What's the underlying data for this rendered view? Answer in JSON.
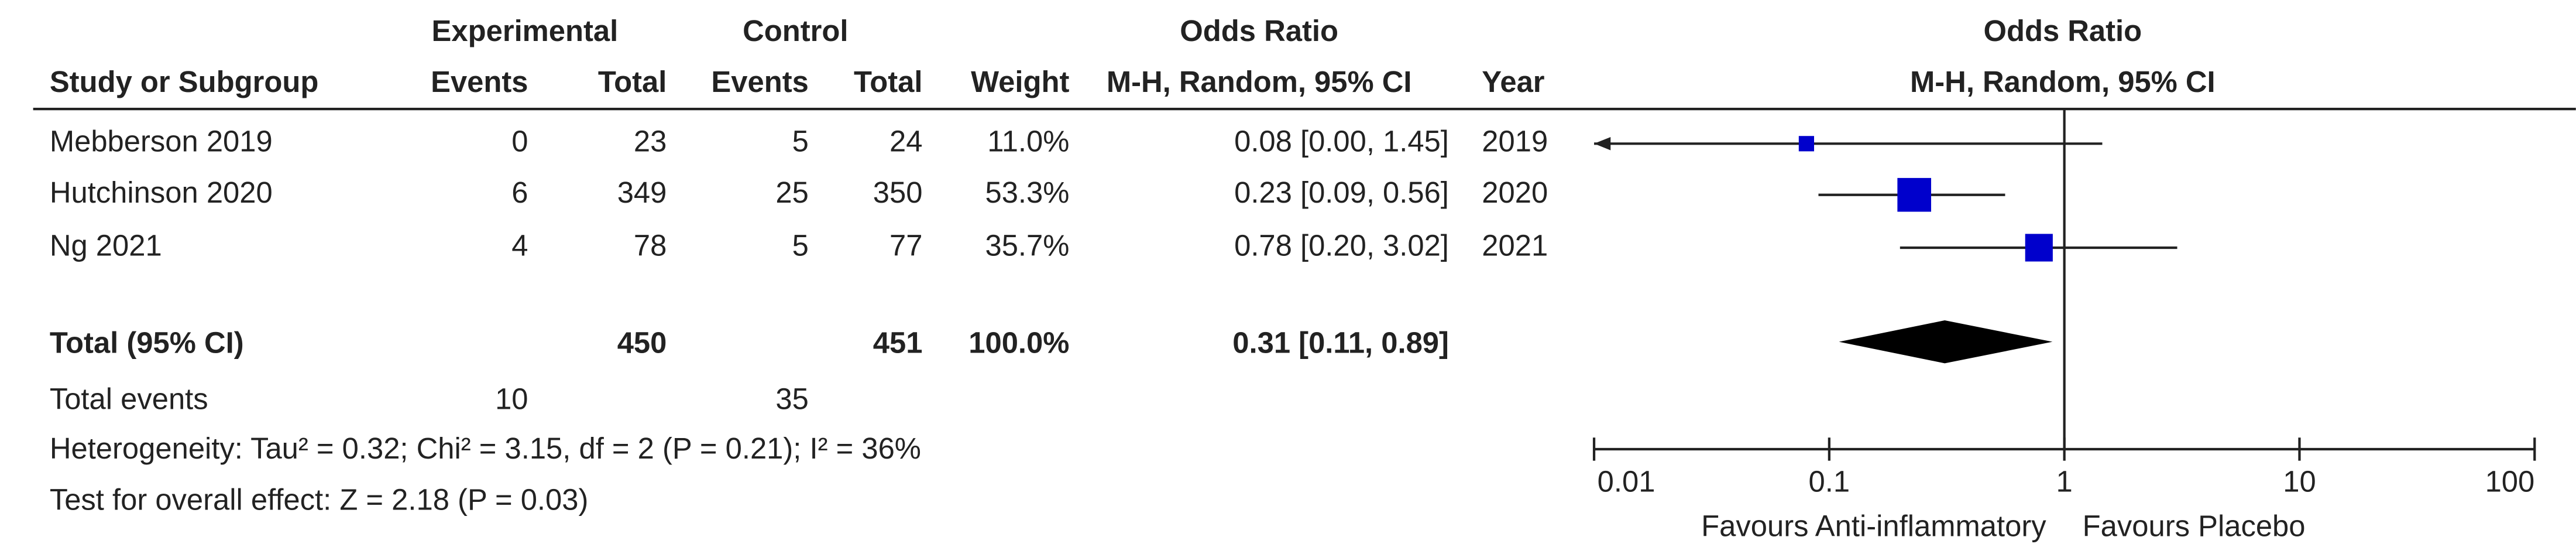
{
  "chart_data": {
    "type": "forest",
    "group_headers": {
      "experimental": "Experimental",
      "control": "Control",
      "estimate": "Odds Ratio",
      "plot": "Odds Ratio"
    },
    "columns": [
      "Study or Subgroup",
      "Events",
      "Total",
      "Events",
      "Total",
      "Weight",
      "M-H, Random, 95% CI",
      "Year"
    ],
    "plot_subtitle": "M-H, Random, 95% CI",
    "categories": [
      "Mebberson 2019",
      "Hutchinson 2020",
      "Ng 2021"
    ],
    "exp_events": [
      0,
      6,
      4
    ],
    "exp_totals": [
      23,
      349,
      78
    ],
    "ctrl_events": [
      5,
      25,
      5
    ],
    "ctrl_totals": [
      24,
      350,
      77
    ],
    "weights": [
      11.0,
      53.3,
      35.7
    ],
    "weight_labels": [
      "11.0%",
      "53.3%",
      "35.7%"
    ],
    "values": [
      0.08,
      0.23,
      0.78
    ],
    "lower": [
      0.0,
      0.09,
      0.2
    ],
    "upper": [
      1.45,
      0.56,
      3.02
    ],
    "value_labels": [
      "0.08 [0.00, 1.45]",
      "0.23 [0.09, 0.56]",
      "0.78 [0.20, 3.02]"
    ],
    "years": [
      2019,
      2020,
      2021
    ],
    "color": "#0000cc",
    "total": {
      "label": "Total (95% CI)",
      "exp_total": 450,
      "ctrl_total": 451,
      "weight": 100.0,
      "weight_label": "100.0%",
      "value": 0.31,
      "lower": 0.11,
      "upper": 0.89,
      "value_label": "0.31 [0.11, 0.89]"
    },
    "total_events": {
      "label": "Total events",
      "exp": 10,
      "ctrl": 35
    },
    "heterogeneity": "Heterogeneity: Tau² = 0.32; Chi² = 3.15, df = 2 (P = 0.21); I² = 36%",
    "overall_effect": "Test for overall effect: Z = 2.18 (P = 0.03)",
    "log_scale": true,
    "xlim": [
      0.01,
      100
    ],
    "xticks": [
      0.01,
      0.1,
      1,
      10,
      100
    ],
    "xlabel_left": "Favours Anti-inflammatory",
    "xlabel_right": "Favours Placebo"
  }
}
